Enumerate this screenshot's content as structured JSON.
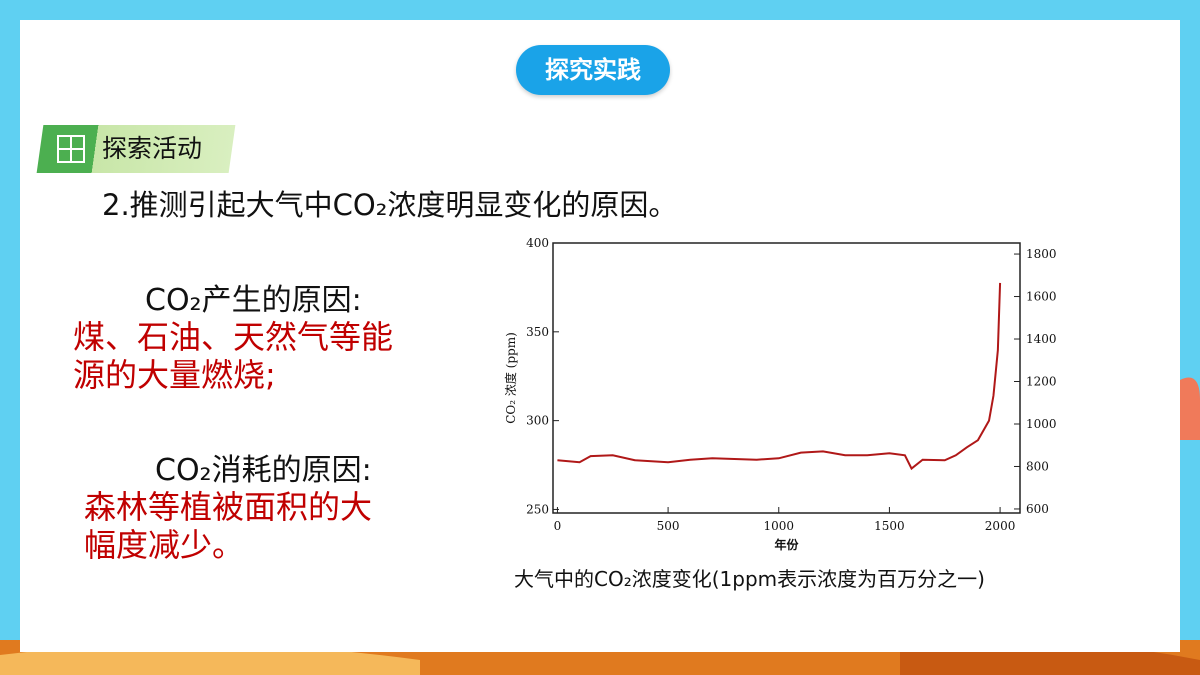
{
  "header": {
    "badge": "探究实践",
    "tag": "探索活动",
    "question": "2.推测引起大气中CO₂浓度明显变化的原因。"
  },
  "left": {
    "produce_title": "CO₂产生的原因:",
    "produce_text": "煤、石油、天然气等能源的大量燃烧;",
    "consume_title": "CO₂消耗的原因:",
    "consume_text": "森林等植被面积的大幅度减少。"
  },
  "chart_data": {
    "type": "line",
    "title": "大气中的CO₂浓度变化(1ppm表示浓度为百万分之一)",
    "x_label": "年份",
    "y_label": "CO₂ 浓度 (ppm)",
    "x": [
      0,
      100,
      150,
      250,
      350,
      500,
      600,
      700,
      900,
      1000,
      1100,
      1200,
      1300,
      1400,
      1500,
      1570,
      1600,
      1650,
      1750,
      1800,
      1850,
      1900,
      1950,
      1970,
      1990,
      2000
    ],
    "series": [
      {
        "color": "#b01818",
        "values": [
          277.7,
          276.6,
          280,
          280.5,
          277.7,
          276.6,
          278,
          278.8,
          278,
          278.8,
          282,
          282.7,
          280.5,
          280.5,
          281.6,
          280.5,
          273,
          278,
          277.7,
          280.5,
          285,
          289,
          300,
          314,
          339.7,
          377.5
        ]
      }
    ],
    "xlim": [
      -20,
      2090
    ],
    "xticks": [
      0,
      500,
      1000,
      1500,
      2000
    ],
    "ylim": [
      248,
      400
    ],
    "yticks": [
      250,
      300,
      350,
      400
    ],
    "y2lim": [
      581,
      1852
    ],
    "y2ticks": [
      600,
      800,
      1000,
      1200,
      1400,
      1600,
      1800
    ]
  }
}
